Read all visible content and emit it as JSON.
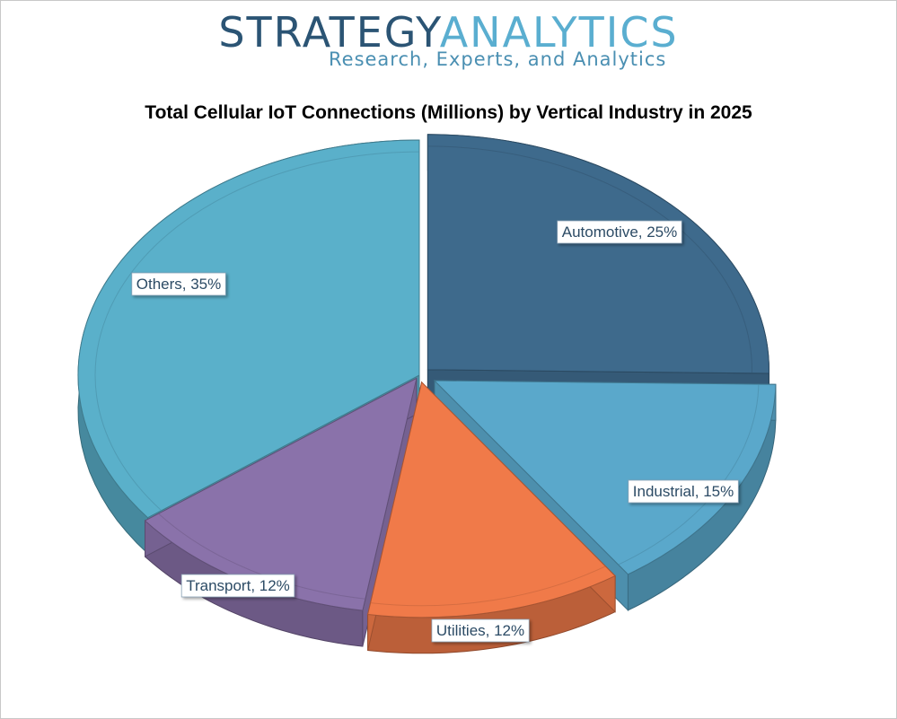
{
  "branding": {
    "logo_word1": "STRATEGY",
    "logo_word2": "ANALYTICS",
    "tagline": "Research, Experts, and Analytics"
  },
  "chart_data": {
    "type": "pie",
    "title": "Total Cellular IoT Connections (Millions) by Vertical Industry in 2025",
    "slices": [
      {
        "label": "Automotive, 25%",
        "category": "Automotive",
        "value": 25,
        "color": "#3e6a8c"
      },
      {
        "label": "Industrial, 15%",
        "category": "Industrial",
        "value": 15,
        "color": "#5aa8cb"
      },
      {
        "label": "Utilities, 12%",
        "category": "Utilities",
        "value": 12,
        "color": "#f07a49"
      },
      {
        "label": "Transport, 12%",
        "category": "Transport",
        "value": 12,
        "color": "#8a72aa"
      },
      {
        "label": "Others, 35%",
        "category": "Others",
        "value": 35,
        "color": "#5ab0ca"
      }
    ],
    "legend": "none",
    "style": "3d-exploded"
  }
}
